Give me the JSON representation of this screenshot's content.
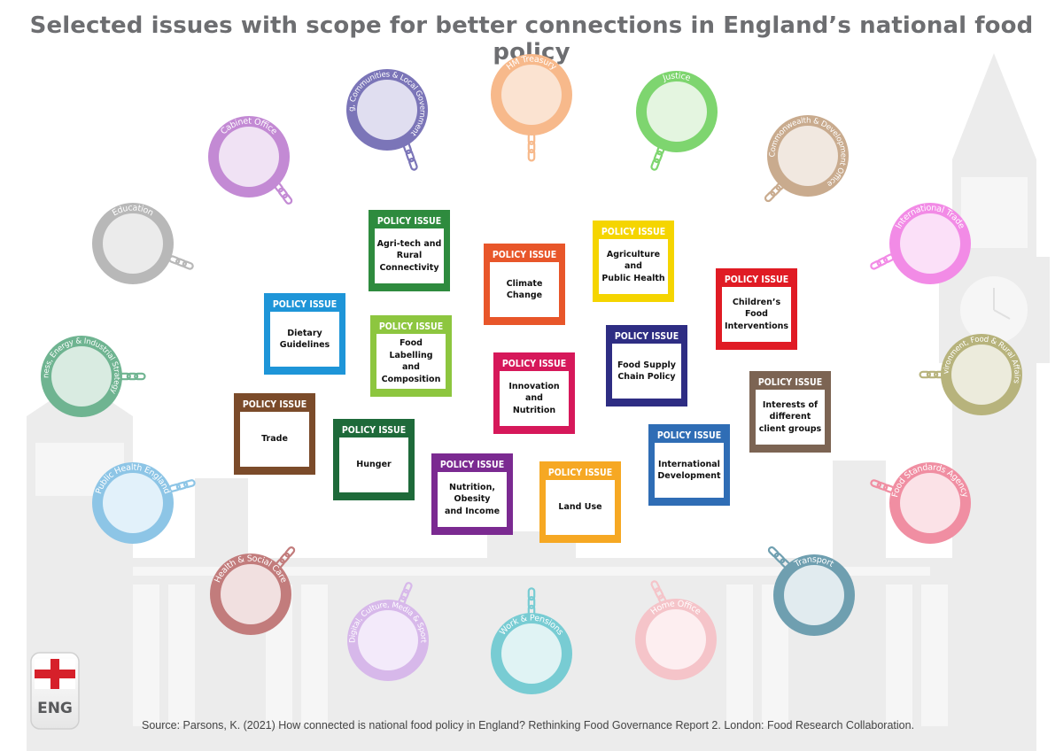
{
  "title": "Selected issues with scope for better connections in England’s national food policy",
  "source": "Source: Parsons, K. (2021) How connected is national food policy in England? Rethinking Food Governance Report 2. London: Food Research Collaboration.",
  "badge": {
    "label": "ENG"
  },
  "issue_header": "POLICY ISSUE",
  "issues": [
    {
      "id": "agri-tech",
      "text": "Agri-tech and\nRural\nConnectivity",
      "color": "#2e8b3e"
    },
    {
      "id": "climate-change",
      "text": "Climate\nChange",
      "color": "#e8562a"
    },
    {
      "id": "agriculture-public-health",
      "text": "Agriculture\nand\nPublic Health",
      "color": "#f5d500"
    },
    {
      "id": "childrens-food",
      "text": "Children’s\nFood\nInterventions",
      "color": "#e01b24"
    },
    {
      "id": "dietary-guidelines",
      "text": "Dietary\nGuidelines",
      "color": "#1e95d8"
    },
    {
      "id": "food-labelling",
      "text": "Food Labelling\nand\nComposition",
      "color": "#8dc63f"
    },
    {
      "id": "innovation-nutrition",
      "text": "Innovation\nand\nNutrition",
      "color": "#d6185a"
    },
    {
      "id": "food-supply-chain",
      "text": "Food Supply\nChain Policy",
      "color": "#2e2d83"
    },
    {
      "id": "interests-client-groups",
      "text": "Interests of\ndifferent\nclient groups",
      "color": "#7c6453"
    },
    {
      "id": "trade",
      "text": "Trade",
      "color": "#7b4b2a"
    },
    {
      "id": "hunger",
      "text": "Hunger",
      "color": "#1e6a3a"
    },
    {
      "id": "nutrition-obesity-income",
      "text": "Nutrition,\nObesity\nand Income",
      "color": "#7b2a91"
    },
    {
      "id": "land-use",
      "text": "Land Use",
      "color": "#f6a823"
    },
    {
      "id": "international-development",
      "text": "International\nDevelopment",
      "color": "#2f6db5"
    }
  ],
  "departments": [
    {
      "id": "hm-treasury",
      "label": "HM Treasury",
      "color": "#f7b98b",
      "inner": "#fbe3d1"
    },
    {
      "id": "housing-communities",
      "label": "Housing, Communities & Local Government",
      "color": "#7b75b8",
      "inner": "#e0def0"
    },
    {
      "id": "justice",
      "label": "Justice",
      "color": "#7ed56f",
      "inner": "#e4f5e0"
    },
    {
      "id": "cabinet-office",
      "label": "Cabinet Office",
      "color": "#c38ad4",
      "inner": "#f0e2f4"
    },
    {
      "id": "foreign-commonwealth",
      "label": "Foreign, Commonwealth & Development Office",
      "color": "#c9ab8e",
      "inner": "#f1e8e0"
    },
    {
      "id": "education",
      "label": "Education",
      "color": "#b8b8b8",
      "inner": "#ebebeb"
    },
    {
      "id": "international-trade",
      "label": "International Trade",
      "color": "#f28be6",
      "inner": "#fbe0f8"
    },
    {
      "id": "business-energy",
      "label": "Business, Energy & Industrial Strategy",
      "color": "#6fb491",
      "inner": "#d9ebe1"
    },
    {
      "id": "environment-food",
      "label": "Environment, Food & Rural Affairs",
      "color": "#b7b37c",
      "inner": "#ecebdc"
    },
    {
      "id": "public-health-england",
      "label": "Public Health England",
      "color": "#8dc5e6",
      "inner": "#e2f1fa"
    },
    {
      "id": "food-standards-agency",
      "label": "Food Standards Agency",
      "color": "#f08ea2",
      "inner": "#fbe2e7"
    },
    {
      "id": "health-social-care",
      "label": "Health & Social Care",
      "color": "#c27c7c",
      "inner": "#f1e0e0"
    },
    {
      "id": "transport",
      "label": "Transport",
      "color": "#6f9fb0",
      "inner": "#e1ebef"
    },
    {
      "id": "digital-culture",
      "label": "Digital, Culture, Media & Sport",
      "color": "#d7b8ea",
      "inner": "#f3eafa"
    },
    {
      "id": "work-pensions",
      "label": "Work & Pensions",
      "color": "#78ccd3",
      "inner": "#e0f3f4"
    },
    {
      "id": "home-office",
      "label": "Home Office",
      "color": "#f5c4c9",
      "inner": "#fdeef0"
    }
  ]
}
